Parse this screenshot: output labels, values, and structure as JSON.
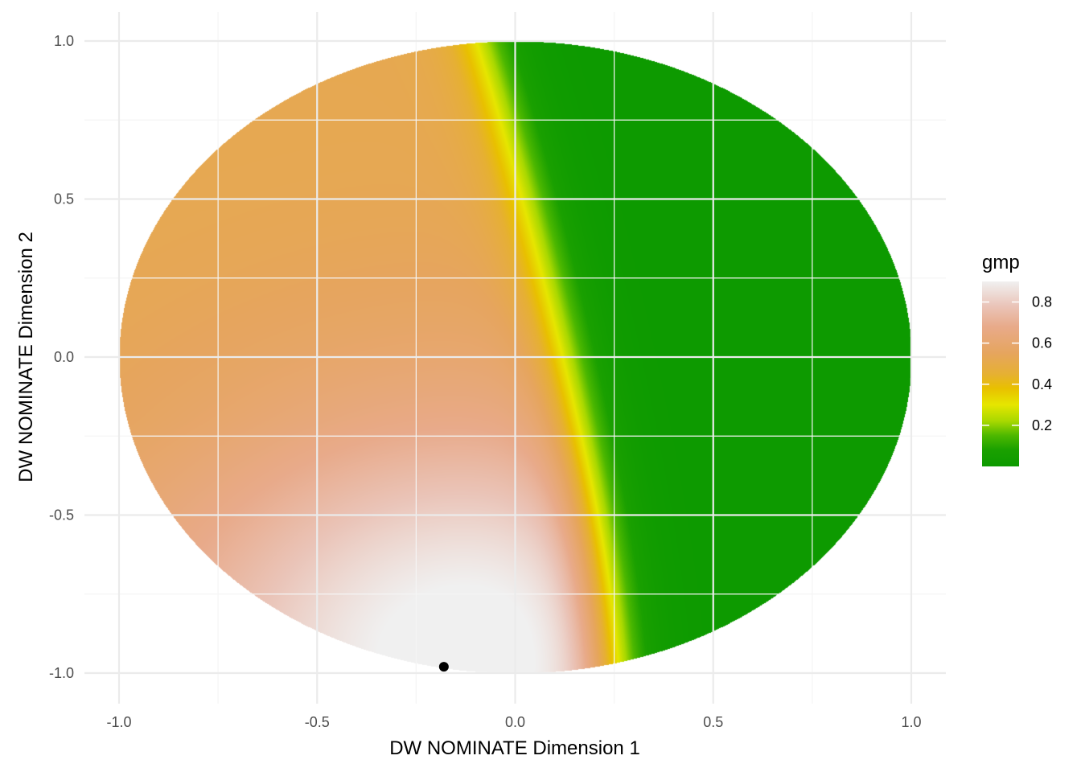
{
  "chart_data": {
    "type": "heatmap",
    "title": "",
    "xlabel": "DW NOMINATE Dimension 1",
    "ylabel": "DW NOMINATE Dimension 2",
    "xlim": [
      -1.0,
      1.0
    ],
    "ylim": [
      -1.0,
      1.0
    ],
    "x_ticks": [
      "-1.0",
      "-0.5",
      "0.0",
      "0.5",
      "1.0"
    ],
    "y_ticks": [
      "1.0",
      "0.5",
      "0.0",
      "-0.5",
      "-1.0"
    ],
    "x_tick_values": [
      -1.0,
      -0.5,
      0.0,
      0.5,
      1.0
    ],
    "y_tick_values": [
      1.0,
      0.5,
      0.0,
      -0.5,
      -1.0
    ],
    "grid": true,
    "region": "unit circle",
    "point": {
      "x": -0.18,
      "y": -0.98,
      "color": "#000000"
    },
    "legend": {
      "title": "gmp",
      "position": "right",
      "range": [
        0.0,
        0.9
      ],
      "labels": [
        "0.8",
        "0.6",
        "0.4",
        "0.2"
      ],
      "values": [
        0.8,
        0.6,
        0.4,
        0.2
      ],
      "color_stops": [
        {
          "value": 0.0,
          "color": "#0d9a00"
        },
        {
          "value": 0.08,
          "color": "#1aa000"
        },
        {
          "value": 0.15,
          "color": "#4db800"
        },
        {
          "value": 0.22,
          "color": "#a8d800"
        },
        {
          "value": 0.3,
          "color": "#e6e600"
        },
        {
          "value": 0.38,
          "color": "#e8c000"
        },
        {
          "value": 0.45,
          "color": "#e6b033"
        },
        {
          "value": 0.55,
          "color": "#e6a55e"
        },
        {
          "value": 0.68,
          "color": "#e8aa8a"
        },
        {
          "value": 0.78,
          "color": "#eac4b8"
        },
        {
          "value": 0.9,
          "color": "#f0f0f0"
        }
      ]
    },
    "colors": {
      "grid_major": "#ebebeb",
      "grid_minor": "#f5f5f5",
      "point": "#000000"
    }
  }
}
